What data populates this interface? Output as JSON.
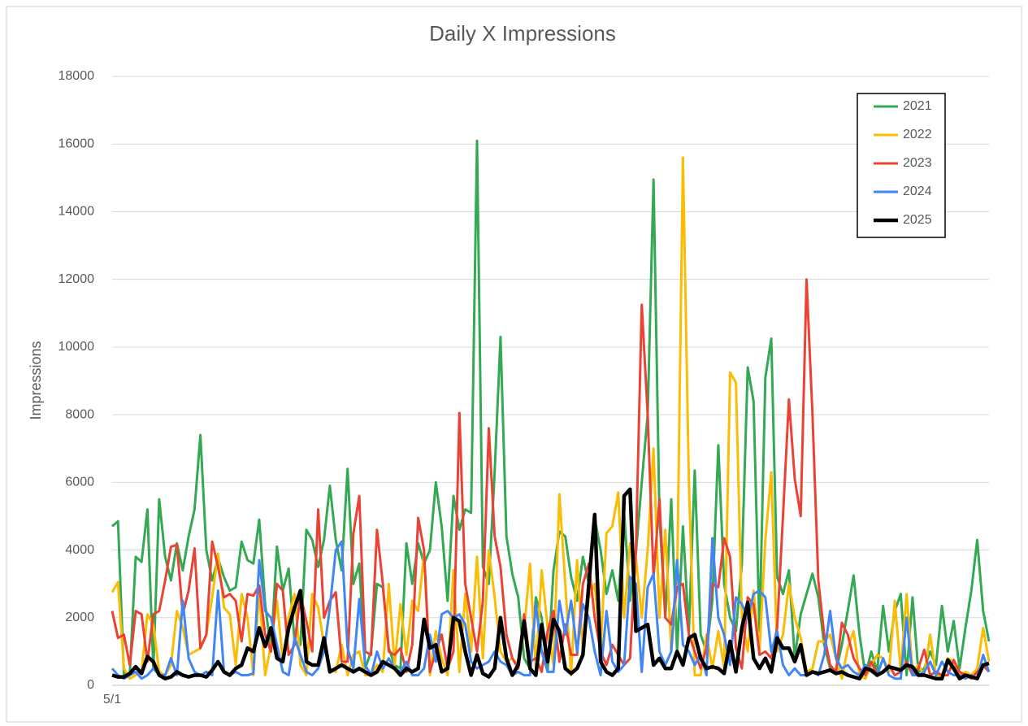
{
  "chart_data": {
    "type": "line",
    "title": "Daily X Impressions",
    "y_label": "Impressions",
    "categories": [
      "5/1",
      null,
      null,
      null,
      null,
      null,
      null,
      null,
      null,
      null,
      null,
      null,
      null,
      null,
      null,
      null,
      null,
      null,
      null,
      null,
      null,
      null,
      null,
      null,
      null,
      null,
      null,
      null,
      null,
      null,
      null,
      null,
      null,
      null,
      null,
      null,
      null,
      null,
      null,
      null,
      null,
      null,
      null,
      null,
      null,
      null,
      null,
      null,
      null,
      null,
      null,
      null,
      null,
      null,
      null,
      null,
      null,
      null,
      null,
      null,
      null,
      null,
      null,
      null,
      null,
      null,
      null,
      null,
      null,
      null,
      null,
      null,
      null,
      null,
      null,
      null,
      null,
      null,
      null,
      null,
      null,
      null,
      null,
      null,
      null,
      null,
      null,
      null,
      null,
      null,
      null,
      null,
      null,
      null,
      null,
      null,
      null,
      null,
      null,
      null,
      null,
      null,
      null,
      null,
      null,
      null,
      null,
      null,
      null,
      null,
      null,
      null,
      null,
      null,
      null,
      null,
      null,
      null,
      null,
      null,
      null,
      null,
      null,
      null,
      null,
      null,
      null,
      null,
      null,
      null,
      null,
      null,
      null,
      null,
      null,
      null,
      null,
      null,
      null,
      null,
      null,
      null,
      null,
      null,
      null,
      null,
      null,
      null,
      null,
      null
    ],
    "ylim": [
      0,
      18000
    ],
    "yticks": [
      0,
      2000,
      4000,
      6000,
      8000,
      10000,
      12000,
      14000,
      16000,
      18000
    ],
    "grid": true,
    "legend": "top-right",
    "series": [
      {
        "name": "2021",
        "color": "#34a853",
        "width": 3,
        "values": [
          4700,
          4850,
          300,
          350,
          3800,
          3650,
          5200,
          500,
          5500,
          3800,
          3100,
          4200,
          3400,
          4400,
          5200,
          7400,
          4000,
          3100,
          3750,
          3200,
          2800,
          2900,
          4250,
          3700,
          3600,
          4900,
          2400,
          1000,
          4100,
          2800,
          3450,
          1300,
          1200,
          4600,
          4300,
          3500,
          4300,
          5900,
          4300,
          3400,
          6400,
          3000,
          3600,
          500,
          1000,
          3000,
          2900,
          1100,
          600,
          500,
          4200,
          3000,
          4200,
          3600,
          4000,
          6000,
          4700,
          2500,
          5600,
          4600,
          5200,
          5100,
          16100,
          3500,
          3000,
          6300,
          10300,
          4400,
          3300,
          2600,
          800,
          500,
          2600,
          2000,
          400,
          3400,
          4550,
          4400,
          3200,
          2500,
          3800,
          3000,
          4950,
          4000,
          2700,
          3400,
          2500,
          5100,
          2500,
          3900,
          6000,
          8000,
          14950,
          5000,
          2000,
          5500,
          1000,
          4700,
          1600,
          6350,
          1500,
          1000,
          2500,
          7100,
          3000,
          2000,
          1600,
          3600,
          9400,
          8400,
          1600,
          9100,
          10250,
          3200,
          2700,
          3400,
          800,
          2100,
          2700,
          3300,
          2600,
          1200,
          500,
          400,
          1200,
          2200,
          3250,
          1500,
          300,
          1000,
          400,
          2350,
          1000,
          2200,
          2700,
          300,
          2600,
          400,
          500,
          1000,
          600,
          2350,
          1000,
          1900,
          500,
          1700,
          2800,
          4300,
          2200,
          1300
        ]
      },
      {
        "name": "2022",
        "color": "#fbbc04",
        "width": 3,
        "values": [
          2750,
          3050,
          500,
          200,
          300,
          400,
          2100,
          1800,
          400,
          300,
          600,
          2200,
          1700,
          900,
          1000,
          1100,
          1500,
          2600,
          3900,
          2300,
          2100,
          600,
          2700,
          2000,
          300,
          2800,
          300,
          1200,
          2500,
          700,
          2000,
          2700,
          600,
          300,
          2700,
          2300,
          1200,
          500,
          400,
          1200,
          300,
          900,
          1000,
          300,
          300,
          600,
          400,
          3000,
          600,
          2400,
          900,
          2500,
          2200,
          3900,
          300,
          1600,
          800,
          300,
          3400,
          400,
          2700,
          1000,
          3800,
          800,
          4000,
          2600,
          1000,
          700,
          800,
          600,
          1600,
          3600,
          500,
          3400,
          1700,
          600,
          5650,
          3000,
          300,
          3700,
          1000,
          2600,
          3000,
          1000,
          4500,
          4700,
          5700,
          2000,
          4200,
          3800,
          2000,
          4000,
          7000,
          2000,
          4600,
          1000,
          3000,
          15600,
          6000,
          300,
          300,
          1500,
          500,
          1600,
          500,
          9250,
          8950,
          2000,
          1000,
          2800,
          1000,
          4300,
          6300,
          1000,
          1500,
          3000,
          2000,
          1400,
          400,
          500,
          1300,
          1300,
          1500,
          800,
          200,
          1100,
          1600,
          300,
          200,
          600,
          900,
          800,
          400,
          2500,
          400,
          2700,
          400,
          600,
          300,
          1500,
          300,
          300,
          800,
          700,
          300,
          400,
          300,
          500,
          1700,
          700
        ]
      },
      {
        "name": "2023",
        "color": "#ea4335",
        "width": 3,
        "values": [
          2200,
          1400,
          1500,
          600,
          2200,
          2100,
          700,
          2100,
          2200,
          3100,
          4100,
          4150,
          2100,
          2800,
          4050,
          1100,
          1500,
          4250,
          3500,
          2600,
          2700,
          2500,
          1300,
          2700,
          2650,
          2950,
          1500,
          1000,
          3000,
          2800,
          900,
          1200,
          2700,
          1900,
          1000,
          5200,
          2000,
          2500,
          2750,
          700,
          700,
          4500,
          5600,
          1000,
          900,
          4600,
          3000,
          1000,
          900,
          1100,
          400,
          1200,
          4950,
          4000,
          400,
          1000,
          1500,
          500,
          1000,
          8050,
          3000,
          2000,
          1000,
          2500,
          7600,
          4400,
          3500,
          1500,
          800,
          500,
          2100,
          700,
          800,
          400,
          1600,
          2200,
          700,
          1800,
          900,
          900,
          3000,
          3600,
          2000,
          1000,
          600,
          1200,
          900,
          600,
          800,
          4000,
          11250,
          8000,
          3200,
          5500,
          2000,
          1800,
          2900,
          3000,
          1500,
          1000,
          500,
          1100,
          3000,
          2900,
          4350,
          3800,
          1100,
          500,
          2600,
          2400,
          900,
          1000,
          800,
          1700,
          5000,
          8450,
          6100,
          5000,
          12000,
          8000,
          3100,
          1500,
          600,
          400,
          1850,
          1500,
          800,
          500,
          300,
          700,
          300,
          400,
          600,
          300,
          400,
          700,
          300,
          500,
          1050,
          300,
          400,
          300,
          300,
          750,
          400,
          300,
          200,
          400,
          600,
          400
        ]
      },
      {
        "name": "2024",
        "color": "#4285f4",
        "width": 3,
        "values": [
          500,
          300,
          200,
          300,
          400,
          200,
          300,
          500,
          300,
          300,
          800,
          300,
          2500,
          800,
          400,
          300,
          400,
          300,
          2800,
          400,
          300,
          400,
          300,
          300,
          350,
          3700,
          2200,
          2000,
          1200,
          400,
          300,
          1400,
          900,
          400,
          300,
          500,
          1000,
          2300,
          4000,
          4250,
          1100,
          500,
          2550,
          600,
          300,
          1000,
          500,
          800,
          500,
          400,
          700,
          300,
          300,
          500,
          1500,
          700,
          2100,
          2200,
          2000,
          2100,
          1800,
          700,
          500,
          600,
          700,
          1000,
          700,
          600,
          300,
          400,
          300,
          300,
          2400,
          1000,
          400,
          400,
          2500,
          1500,
          2500,
          1000,
          2400,
          2000,
          1000,
          300,
          2200,
          700,
          400,
          600,
          3200,
          3000,
          400,
          2900,
          3300,
          1000,
          600,
          1000,
          3700,
          1200,
          1000,
          600,
          900,
          300,
          4350,
          2000,
          1500,
          600,
          2600,
          2400,
          2000,
          2700,
          2800,
          2600,
          1000,
          1600,
          600,
          300,
          500,
          300,
          300,
          400,
          300,
          900,
          2200,
          800,
          500,
          600,
          400,
          300,
          600,
          400,
          300,
          800,
          300,
          200,
          200,
          2000,
          300,
          300,
          400,
          700,
          300,
          700,
          400,
          300,
          300,
          200,
          300,
          200,
          900,
          400
        ]
      },
      {
        "name": "2025",
        "color": "#000000",
        "width": 4.5,
        "values": [
          300,
          250,
          250,
          350,
          550,
          350,
          850,
          700,
          300,
          200,
          250,
          400,
          300,
          250,
          300,
          300,
          250,
          450,
          700,
          400,
          300,
          500,
          600,
          1100,
          1000,
          1700,
          1150,
          1700,
          800,
          700,
          1700,
          2300,
          2800,
          700,
          600,
          600,
          1400,
          400,
          500,
          600,
          500,
          400,
          500,
          400,
          300,
          400,
          700,
          600,
          500,
          300,
          500,
          400,
          500,
          1950,
          1100,
          1200,
          400,
          500,
          2000,
          1900,
          1000,
          300,
          900,
          350,
          250,
          500,
          2000,
          800,
          300,
          600,
          1900,
          500,
          300,
          1800,
          700,
          1950,
          1600,
          500,
          350,
          500,
          900,
          3000,
          5050,
          700,
          400,
          300,
          500,
          5600,
          5800,
          1600,
          1700,
          1800,
          600,
          800,
          500,
          500,
          1000,
          600,
          1400,
          1500,
          800,
          500,
          550,
          500,
          350,
          1300,
          400,
          1700,
          2450,
          800,
          500,
          800,
          400,
          1400,
          1100,
          1100,
          700,
          1200,
          300,
          400,
          350,
          400,
          450,
          350,
          400,
          300,
          250,
          200,
          500,
          450,
          300,
          400,
          550,
          500,
          450,
          600,
          550,
          300,
          300,
          250,
          200,
          200,
          750,
          500,
          200,
          300,
          250,
          200,
          600,
          650
        ]
      }
    ]
  }
}
